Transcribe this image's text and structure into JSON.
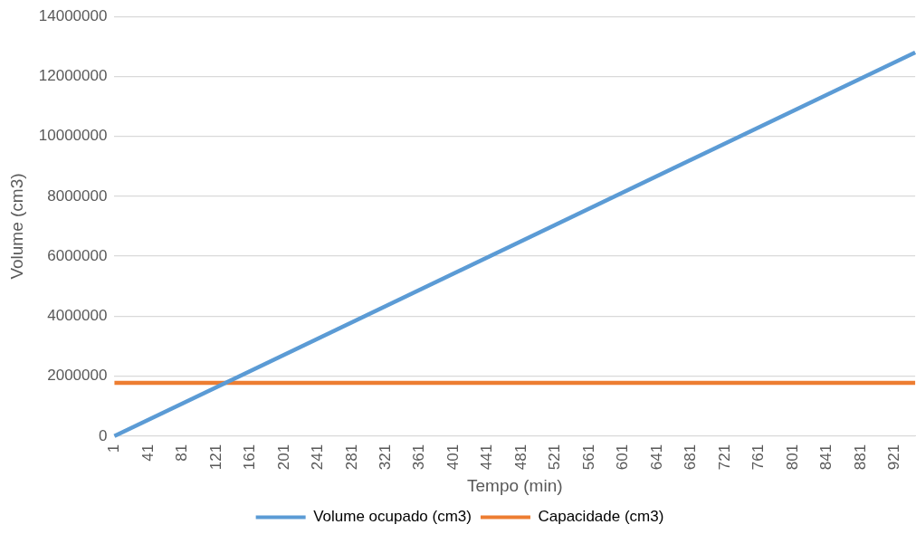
{
  "chart_data": {
    "type": "line",
    "xlabel": "Tempo (min)",
    "ylabel": "Volume (cm3)",
    "xlim": [
      1,
      945
    ],
    "xticks": [
      1,
      41,
      81,
      121,
      161,
      201,
      241,
      281,
      321,
      361,
      401,
      441,
      481,
      521,
      561,
      601,
      641,
      681,
      721,
      761,
      801,
      841,
      881,
      921
    ],
    "ylim": [
      0,
      14000000
    ],
    "yticks": [
      0,
      2000000,
      4000000,
      6000000,
      8000000,
      10000000,
      12000000,
      14000000
    ],
    "x": [
      1,
      945
    ],
    "grid": "y",
    "legend": "bottom",
    "marker": "none",
    "line_style": "solid",
    "series": [
      {
        "name": "Volume ocupado (cm3)",
        "color": "#5b9bd5",
        "values": [
          0,
          12800000
        ]
      },
      {
        "name": "Capacidade (cm3)",
        "color": "#ed7d31",
        "values": [
          1780000,
          1780000
        ]
      }
    ]
  }
}
